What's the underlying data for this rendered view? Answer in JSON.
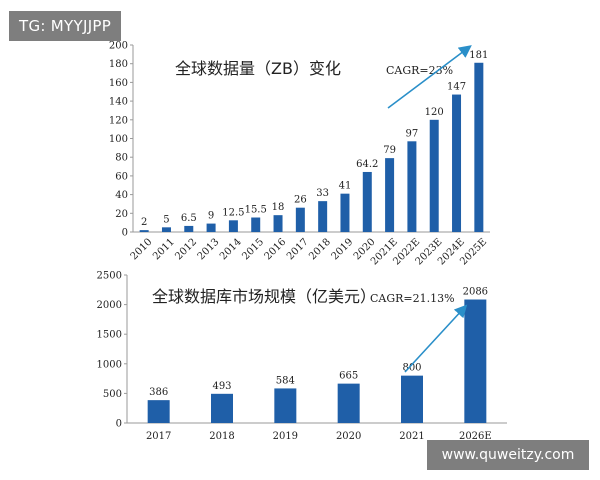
{
  "watermarks": {
    "top_left": "TG: MYYJJPP",
    "bottom_right": "www.quweitzy.com"
  },
  "colors": {
    "bar": "#1f5fa8",
    "axis": "#9a9a9a",
    "text": "#222222",
    "arrow": "#2a8fc9"
  },
  "chart_data": [
    {
      "type": "bar",
      "title": "全球数据量（ZB）变化",
      "annotation": "CAGR=23%",
      "categories": [
        "2010",
        "2011",
        "2012",
        "2013",
        "2014",
        "2015",
        "2016",
        "2017",
        "2018",
        "2019",
        "2020",
        "2021E",
        "2022E",
        "2023E",
        "2024E",
        "2025E"
      ],
      "values": [
        2,
        5,
        6.5,
        9,
        12.5,
        15.5,
        18,
        26,
        33,
        41,
        64.2,
        79,
        97,
        120,
        147,
        181
      ],
      "value_labels": [
        "2",
        "5",
        "6.5",
        "9",
        "12.5",
        "15.5",
        "18",
        "26",
        "33",
        "41",
        "64.2",
        "79",
        "97",
        "120",
        "147",
        "181"
      ],
      "ylim": [
        0,
        200
      ],
      "yticks": [
        0,
        20,
        40,
        60,
        80,
        100,
        120,
        140,
        160,
        180,
        200
      ],
      "legend": "none",
      "grid": false
    },
    {
      "type": "bar",
      "title": "全球数据库市场规模（亿美元）",
      "annotation": "CAGR=21.13%",
      "categories": [
        "2017",
        "2018",
        "2019",
        "2020",
        "2021",
        "2026E"
      ],
      "values": [
        386,
        493,
        584,
        665,
        800,
        2086
      ],
      "value_labels": [
        "386",
        "493",
        "584",
        "665",
        "800",
        "2086"
      ],
      "ylim": [
        0,
        2500
      ],
      "yticks": [
        0,
        500,
        1000,
        1500,
        2000,
        2500
      ],
      "legend": "none",
      "grid": false
    }
  ]
}
